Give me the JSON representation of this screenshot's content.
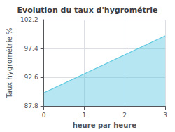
{
  "chart_data": {
    "type": "area",
    "title": "Evolution du taux d'hygrométrie",
    "xlabel": "heure par heure",
    "ylabel": "Taux hygrométrie %",
    "x": [
      0,
      3
    ],
    "values": [
      90.0,
      99.5
    ],
    "baseline": 87.8,
    "color": "#5bc8e0",
    "xlim": [
      0,
      3
    ],
    "ylim": [
      87.8,
      102.2
    ],
    "xticks": [
      0,
      1,
      2,
      3
    ],
    "yticks": [
      87.8,
      92.6,
      97.4,
      102.2
    ],
    "grid": true
  }
}
